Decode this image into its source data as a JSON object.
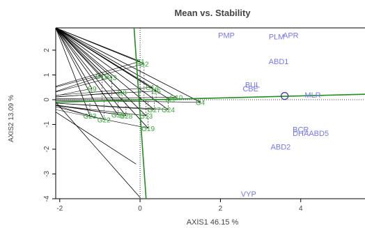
{
  "chart_data": {
    "type": "scatter",
    "title": "Mean vs. Stability",
    "xlabel": "AXIS1 46.15 %",
    "ylabel": "AXIS2 13.09 %",
    "xlim": [
      -2.1,
      5.6
    ],
    "ylim": [
      -4,
      2.9
    ],
    "x_ticks": [
      -2,
      0,
      2,
      4
    ],
    "y_ticks": [
      2,
      1,
      0,
      -1,
      -2,
      -3,
      -4
    ],
    "colors": {
      "genotype": "#33AA33",
      "environment": "#7777EE",
      "axis_line": "#228B22",
      "origin_circle": "#3333AA"
    },
    "genotypes": [
      {
        "name": "G1",
        "x": 0.0,
        "y": 1.55
      },
      {
        "name": "G2",
        "x": 0.1,
        "y": 1.45
      },
      {
        "name": "G3",
        "x": -0.7,
        "y": 0.9
      },
      {
        "name": "G5",
        "x": 0.75,
        "y": 0.0
      },
      {
        "name": "G4",
        "x": 1.5,
        "y": -0.1
      },
      {
        "name": "G6",
        "x": 0.4,
        "y": 0.35
      },
      {
        "name": "G8",
        "x": -0.45,
        "y": 0.3
      },
      {
        "name": "G9",
        "x": -1.2,
        "y": 0.45
      },
      {
        "name": "G10",
        "x": 0.9,
        "y": 0.1
      },
      {
        "name": "G13",
        "x": 0.15,
        "y": -0.65
      },
      {
        "name": "G14",
        "x": 0.3,
        "y": 0.5
      },
      {
        "name": "G16",
        "x": -0.95,
        "y": 0.95
      },
      {
        "name": "G19",
        "x": 0.2,
        "y": -1.15
      },
      {
        "name": "G22",
        "x": -0.9,
        "y": -0.8
      },
      {
        "name": "G23",
        "x": -1.25,
        "y": -0.65
      },
      {
        "name": "G24",
        "x": 0.7,
        "y": -0.4
      },
      {
        "name": "G25",
        "x": -0.55,
        "y": -0.6
      },
      {
        "name": "G27",
        "x": 0.35,
        "y": -0.4
      },
      {
        "name": "G28",
        "x": -0.35,
        "y": -0.65
      }
    ],
    "environments": [
      {
        "name": "PMP",
        "x": 2.15,
        "y": 2.6
      },
      {
        "name": "PLM",
        "x": 3.4,
        "y": 2.55
      },
      {
        "name": "APR",
        "x": 3.75,
        "y": 2.6
      },
      {
        "name": "ABD1",
        "x": 3.45,
        "y": 1.55
      },
      {
        "name": "BUL",
        "x": 2.8,
        "y": 0.6
      },
      {
        "name": "CBE",
        "x": 2.75,
        "y": 0.45
      },
      {
        "name": "MLR",
        "x": 4.3,
        "y": 0.2
      },
      {
        "name": "BCR",
        "x": 4.0,
        "y": -1.2
      },
      {
        "name": "DHA",
        "x": 4.0,
        "y": -1.35
      },
      {
        "name": "ABD5",
        "x": 4.45,
        "y": -1.35
      },
      {
        "name": "ABD2",
        "x": 3.5,
        "y": -1.9
      },
      {
        "name": "VYP",
        "x": 2.7,
        "y": -3.8
      }
    ],
    "origin_marker": {
      "x": 3.6,
      "y": 0.15
    },
    "axis_lines": [
      {
        "x1": -2.1,
        "y1": -0.1,
        "x2": 5.6,
        "y2": 0.22
      },
      {
        "x1": -0.15,
        "y1": 2.9,
        "x2": 0.15,
        "y2": -4.0
      }
    ],
    "ref_lines": {
      "x": 0,
      "y": 0
    }
  }
}
